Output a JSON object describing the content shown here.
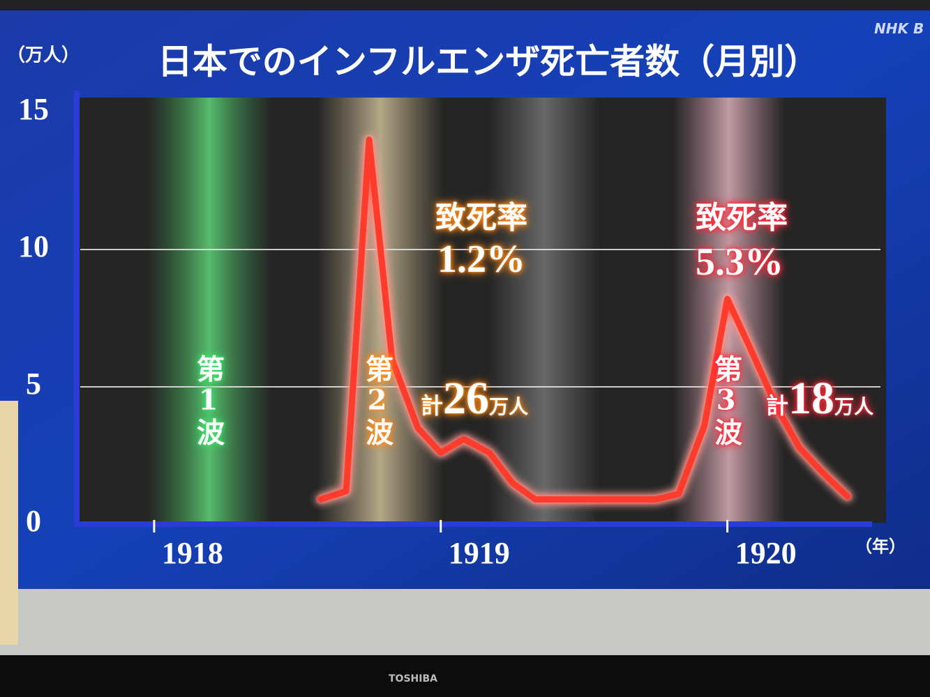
{
  "screen": {
    "logo": "NHK B"
  },
  "tv": {
    "brand": "TOSHIBA"
  },
  "chart_data": {
    "type": "line",
    "title": "日本でのインフルエンザ死亡者数（月別）",
    "y_unit": "（万人）",
    "x_unit": "（年）",
    "x": [
      1918.58,
      1918.67,
      1918.75,
      1918.83,
      1918.92,
      1919.0,
      1919.08,
      1919.17,
      1919.25,
      1919.33,
      1919.42,
      1919.5,
      1919.58,
      1919.67,
      1919.75,
      1919.83,
      1919.92,
      1920.0,
      1920.08,
      1920.17,
      1920.25,
      1920.33,
      1920.42
    ],
    "series": [
      {
        "color": "#ff3b2c",
        "values": [
          0.9,
          1.2,
          14,
          6,
          3.5,
          2.6,
          3.1,
          2.6,
          1.5,
          0.9,
          0.9,
          0.9,
          0.9,
          0.9,
          0.9,
          1.1,
          3.6,
          8.2,
          6.4,
          4.3,
          2.8,
          1.9,
          1.0
        ]
      }
    ],
    "xlim": [
      1917.73,
      1920.5
    ],
    "xticks": [
      1918,
      1919,
      1920
    ],
    "ylim": [
      0,
      15
    ],
    "yticks": [
      0,
      5,
      10,
      15
    ],
    "grid": true,
    "annotations": [
      {
        "wave": "第1波",
        "color": "#3fdc6a"
      },
      {
        "wave": "第2波",
        "color": "#ff8a1a",
        "fatality_label": "致死率",
        "fatality_rate": "1.2%",
        "total_prefix": "計",
        "total": "26",
        "total_unit": "万人"
      },
      {
        "wave": "第3波",
        "color": "#ff2a3a",
        "fatality_label": "致死率",
        "fatality_rate": "5.3%",
        "total_prefix": "計",
        "total": "18",
        "total_unit": "万人"
      }
    ]
  }
}
